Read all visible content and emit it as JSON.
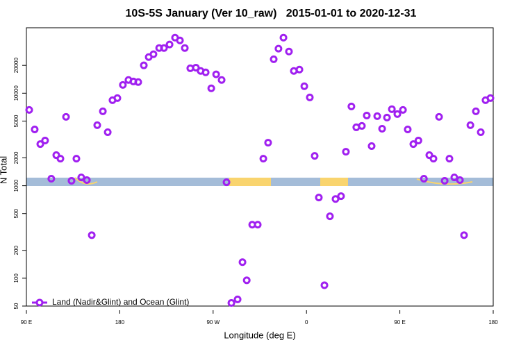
{
  "chart_data": {
    "type": "scatter",
    "title": "10S-5S January (Ver 10_raw)   2015-01-01 to 2020-12-31",
    "x_label": "Longitude (deg E)",
    "y_label": "N Total",
    "log_y": true,
    "legend_position": "bottom-left",
    "xlim": [
      90,
      540
    ],
    "ylim": [
      50,
      51000
    ],
    "xticks": [
      {
        "value": 90,
        "label": "90 E"
      },
      180,
      {
        "value": 270,
        "label": "90 W"
      },
      {
        "value": 360,
        "label": "0"
      },
      {
        "value": 450,
        "label": "90 E"
      },
      {
        "value": 540,
        "label": "180"
      }
    ],
    "yticks": [
      50,
      100,
      200,
      500,
      1000,
      2000,
      5000,
      10000,
      20000
    ],
    "x": [
      92.7,
      98,
      103.4,
      108,
      114,
      118.8,
      122.8,
      128.2,
      133.5,
      138.2,
      142.9,
      148.3,
      153,
      158.3,
      163.7,
      168.4,
      173,
      177.7,
      183,
      188.4,
      193.1,
      197.8,
      203.2,
      207.9,
      212.5,
      218,
      222.6,
      228,
      233.3,
      238,
      242.7,
      248,
      253.4,
      258,
      262.8,
      268.2,
      272.9,
      278.2,
      282.9,
      287.6,
      293.6,
      298.3,
      302.4,
      307.7,
      313,
      318.4,
      323,
      328.4,
      333,
      337.8,
      343.1,
      347.8,
      353.2,
      357.9,
      363.2,
      367.9,
      371.9,
      377.3,
      382.6,
      388,
      393.3,
      398,
      403.3,
      408,
      413.4,
      418.1,
      422.8,
      428.2,
      432.9,
      437.6,
      442.3,
      447.6,
      453,
      457.6,
      463,
      467.9,
      473.2,
      478.4,
      482.4,
      487.8,
      493.2,
      497.8,
      502.5,
      507.9,
      511.9,
      518,
      523.3,
      528,
      532.6,
      537.3
    ],
    "series": [
      {
        "name": "Land (Nadir&Glint) and Ocean (Glint)",
        "color": "#a020f0",
        "values": [
          6600,
          4060,
          2820,
          3080,
          1190,
          2140,
          1960,
          5550,
          1130,
          1960,
          1230,
          1150,
          292,
          4510,
          6370,
          3790,
          8410,
          8850,
          12300,
          13900,
          13400,
          13200,
          20000,
          24600,
          26400,
          30800,
          30800,
          33600,
          39900,
          37200,
          30800,
          18600,
          18900,
          17400,
          16800,
          11300,
          16000,
          13900,
          1090,
          54,
          59,
          149,
          95,
          379,
          379,
          1960,
          2920,
          23300,
          30300,
          39900,
          28200,
          17400,
          18000,
          11900,
          9010,
          2100,
          745,
          84,
          467,
          719,
          771,
          2330,
          7190,
          4280,
          4430,
          5740,
          2680,
          5650,
          4130,
          5460,
          6720,
          5950,
          6600,
          4060,
          2820,
          3080,
          1190,
          2140,
          1960,
          5550,
          1130,
          1960,
          1230,
          1150,
          292,
          4510,
          6370,
          3790,
          8410,
          8850
        ]
      }
    ]
  }
}
